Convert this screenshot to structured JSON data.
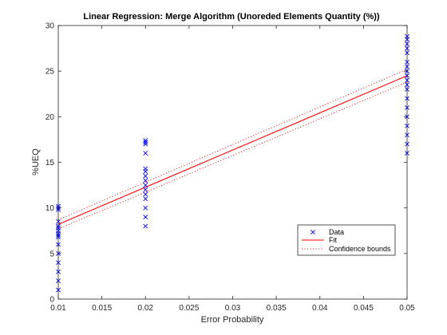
{
  "chart_data": {
    "type": "scatter",
    "title": "Linear Regression: Merge Algorithm (Unoreded Elements Quantity (%))",
    "xlabel": "Error Probability",
    "ylabel": "%UEQ",
    "xlim": [
      0.01,
      0.05
    ],
    "ylim": [
      0,
      30
    ],
    "xticks": [
      "0.01",
      "0.015",
      "0.02",
      "0.025",
      "0.03",
      "0.035",
      "0.04",
      "0.045",
      "0.05"
    ],
    "yticks": [
      "0",
      "5",
      "10",
      "15",
      "20",
      "25",
      "30"
    ],
    "grid": false,
    "legend_position": "bottom-right",
    "series": [
      {
        "name": "Data",
        "marker": "x",
        "color": "#0000ff",
        "points": [
          [
            0.01,
            1
          ],
          [
            0.01,
            2
          ],
          [
            0.01,
            3
          ],
          [
            0.01,
            4
          ],
          [
            0.01,
            5
          ],
          [
            0.01,
            6
          ],
          [
            0.01,
            6.8
          ],
          [
            0.01,
            7
          ],
          [
            0.01,
            7.2
          ],
          [
            0.01,
            7.5
          ],
          [
            0.01,
            7.8
          ],
          [
            0.01,
            8
          ],
          [
            0.01,
            8.5
          ],
          [
            0.01,
            9.8
          ],
          [
            0.01,
            10
          ],
          [
            0.01,
            10.2
          ],
          [
            0.02,
            8
          ],
          [
            0.02,
            9
          ],
          [
            0.02,
            10
          ],
          [
            0.02,
            11
          ],
          [
            0.02,
            11.5
          ],
          [
            0.02,
            12
          ],
          [
            0.02,
            12.5
          ],
          [
            0.02,
            13
          ],
          [
            0.02,
            13.5
          ],
          [
            0.02,
            14
          ],
          [
            0.02,
            14.3
          ],
          [
            0.02,
            16
          ],
          [
            0.02,
            17
          ],
          [
            0.02,
            17.2
          ],
          [
            0.02,
            17.4
          ],
          [
            0.05,
            16
          ],
          [
            0.05,
            17
          ],
          [
            0.05,
            18
          ],
          [
            0.05,
            19
          ],
          [
            0.05,
            20
          ],
          [
            0.05,
            21
          ],
          [
            0.05,
            22
          ],
          [
            0.05,
            23
          ],
          [
            0.05,
            23.5
          ],
          [
            0.05,
            24
          ],
          [
            0.05,
            24.5
          ],
          [
            0.05,
            25
          ],
          [
            0.05,
            25.5
          ],
          [
            0.05,
            26
          ],
          [
            0.05,
            27
          ],
          [
            0.05,
            27.5
          ],
          [
            0.05,
            28
          ],
          [
            0.05,
            28.5
          ],
          [
            0.05,
            28.8
          ]
        ]
      },
      {
        "name": "Fit",
        "style": "solid",
        "color": "#ff0000",
        "points": [
          [
            0.01,
            8.2
          ],
          [
            0.05,
            24.5
          ]
        ]
      },
      {
        "name": "Confidence bounds",
        "style": "dotted",
        "color": "#ff0000",
        "upper": [
          [
            0.01,
            8.7
          ],
          [
            0.05,
            25.2
          ]
        ],
        "lower": [
          [
            0.01,
            7.7
          ],
          [
            0.05,
            23.8
          ]
        ]
      }
    ]
  }
}
